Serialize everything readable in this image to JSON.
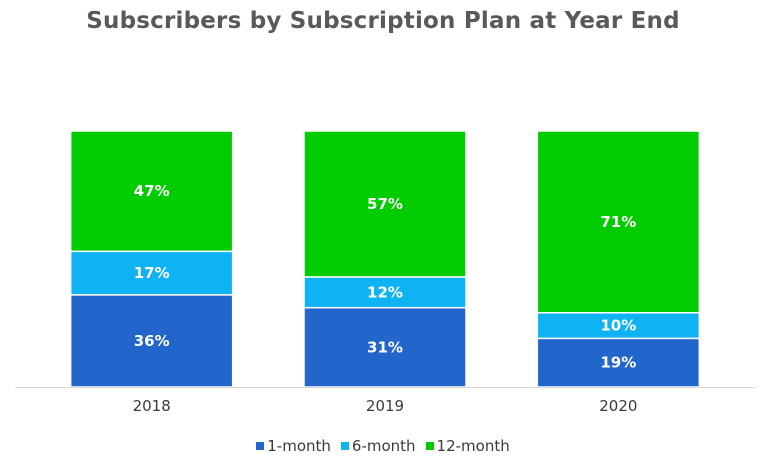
{
  "chart_data": {
    "type": "bar",
    "stacked": true,
    "title": "Subscribers by Subscription Plan at Year End",
    "categories": [
      "2018",
      "2019",
      "2020"
    ],
    "series": [
      {
        "name": "1-month",
        "color": "#2266cc",
        "values": [
          36,
          31,
          19
        ],
        "labels": [
          "36%",
          "31%",
          "19%"
        ]
      },
      {
        "name": "6-month",
        "color": "#0fb2f2",
        "values": [
          17,
          12,
          10
        ],
        "labels": [
          "17%",
          "12%",
          "10%"
        ]
      },
      {
        "name": "12-month",
        "color": "#00cc00",
        "values": [
          47,
          57,
          71
        ],
        "labels": [
          "47%",
          "57%",
          "71%"
        ]
      }
    ],
    "ylim": [
      0,
      100
    ],
    "grid": false,
    "legend_position": "bottom"
  }
}
